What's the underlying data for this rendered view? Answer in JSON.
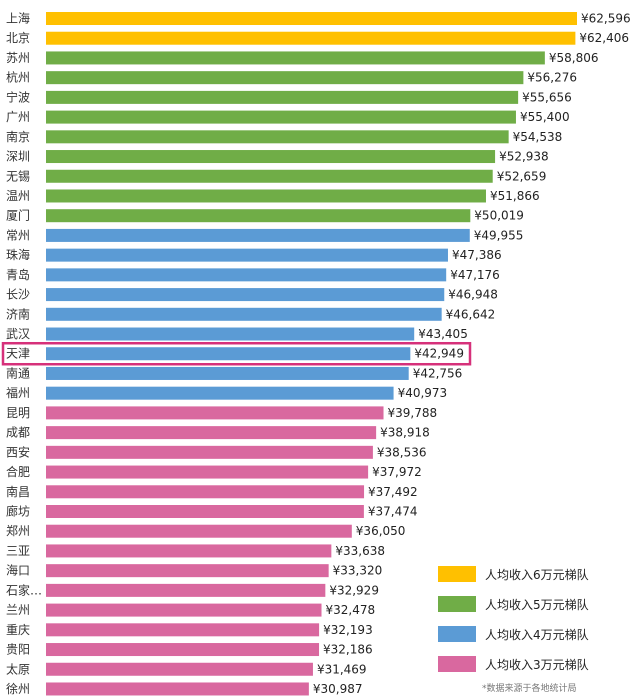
{
  "chart_data": {
    "type": "bar",
    "orientation": "horizontal",
    "categories": [
      "上海",
      "北京",
      "苏州",
      "杭州",
      "宁波",
      "广州",
      "南京",
      "深圳",
      "无锡",
      "温州",
      "厦门",
      "常州",
      "珠海",
      "青岛",
      "长沙",
      "济南",
      "武汉",
      "天津",
      "南通",
      "福州",
      "昆明",
      "成都",
      "西安",
      "合肥",
      "南昌",
      "廊坊",
      "郑州",
      "三亚",
      "海口",
      "石家…",
      "兰州",
      "重庆",
      "贵阳",
      "太原",
      "徐州"
    ],
    "values": [
      62596,
      62406,
      58806,
      56276,
      55656,
      55400,
      54538,
      52938,
      52659,
      51866,
      50019,
      49955,
      47386,
      47176,
      46948,
      46642,
      43405,
      42949,
      42756,
      40973,
      39788,
      38918,
      38536,
      37972,
      37492,
      37474,
      36050,
      33638,
      33320,
      32929,
      32478,
      32193,
      32186,
      31469,
      30987
    ],
    "value_labels": [
      "¥62,596",
      "¥62,406",
      "¥58,806",
      "¥56,276",
      "¥55,656",
      "¥55,400",
      "¥54,538",
      "¥52,938",
      "¥52,659",
      "¥51,866",
      "¥50,019",
      "¥49,955",
      "¥47,386",
      "¥47,176",
      "¥46,948",
      "¥46,642",
      "¥43,405",
      "¥42,949",
      "¥42,756",
      "¥40,973",
      "¥39,788",
      "¥38,918",
      "¥38,536",
      "¥37,972",
      "¥37,492",
      "¥37,474",
      "¥36,050",
      "¥33,638",
      "¥33,320",
      "¥32,929",
      "¥32,478",
      "¥32,193",
      "¥32,186",
      "¥31,469",
      "¥30,987"
    ],
    "tiers": [
      0,
      0,
      1,
      1,
      1,
      1,
      1,
      1,
      1,
      1,
      1,
      2,
      2,
      2,
      2,
      2,
      2,
      2,
      2,
      2,
      3,
      3,
      3,
      3,
      3,
      3,
      3,
      3,
      3,
      3,
      3,
      3,
      3,
      3,
      3
    ],
    "legend": [
      {
        "label": "人均收入6万元梯队",
        "color": "#FFC000"
      },
      {
        "label": "人均收入5万元梯队",
        "color": "#70AD47"
      },
      {
        "label": "人均收入4万元梯队",
        "color": "#5B9BD5"
      },
      {
        "label": "人均收入3万元梯队",
        "color": "#D9689F"
      }
    ],
    "legend_position": "bottom-right",
    "highlighted_category": "天津",
    "highlight_color": "#D6307A",
    "source_note": "*数据来源于各地统计局",
    "grid": false
  }
}
